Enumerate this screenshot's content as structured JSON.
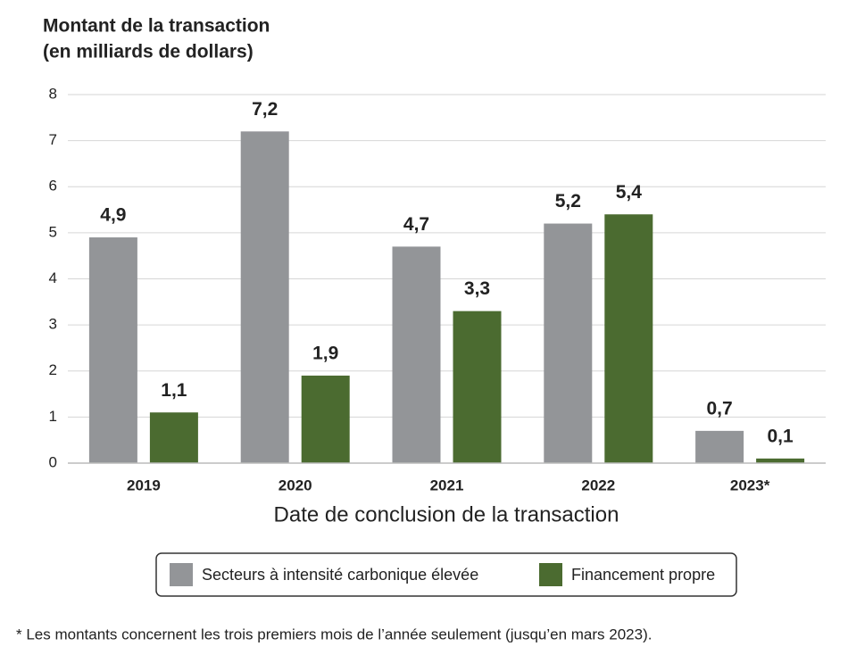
{
  "chart_data": {
    "type": "bar",
    "y_label": [
      "Montant de la transaction",
      "(en milliards de dollars)"
    ],
    "x_label": "Date de conclusion de la transaction",
    "categories": [
      "2019",
      "2020",
      "2021",
      "2022",
      "2023*"
    ],
    "series": [
      {
        "name": "Secteurs à intensité carbonique élevée",
        "color": "#939598",
        "values": [
          4.9,
          7.2,
          4.7,
          5.2,
          0.7
        ],
        "value_labels": [
          "4,9",
          "7,2",
          "4,7",
          "5,2",
          "0,7"
        ]
      },
      {
        "name": "Financement propre",
        "color": "#4b6b30",
        "values": [
          1.1,
          1.9,
          3.3,
          5.4,
          0.1
        ],
        "value_labels": [
          "1,1",
          "1,9",
          "3,3",
          "5,4",
          "0,1"
        ]
      }
    ],
    "ylim": [
      0,
      8
    ],
    "yticks": [
      0,
      1,
      2,
      3,
      4,
      5,
      6,
      7,
      8
    ],
    "grid": true,
    "legend": "bottom",
    "footnote": "* Les montants concernent les trois premiers mois de l’année seulement (jusqu’en mars 2023)."
  }
}
